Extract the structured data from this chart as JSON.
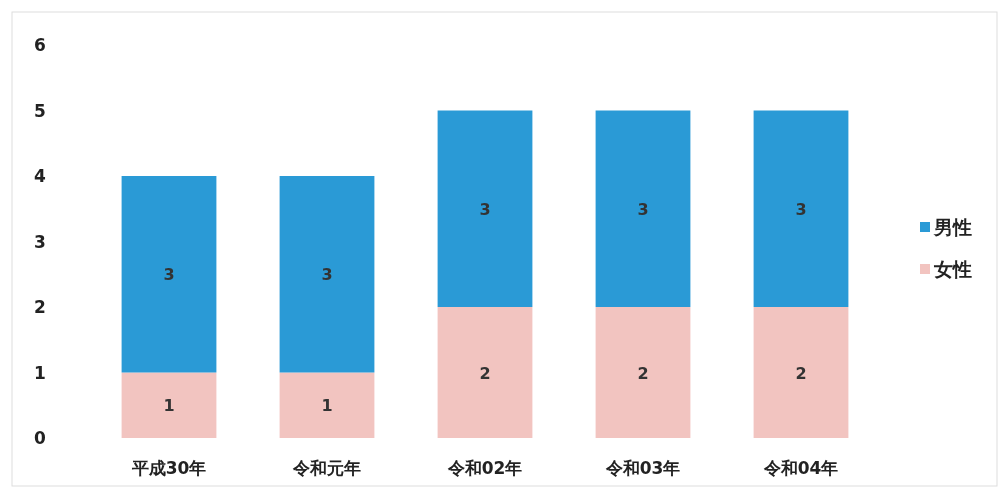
{
  "chart_data": {
    "type": "bar",
    "stacked": true,
    "categories": [
      "平成30年",
      "令和元年",
      "令和02年",
      "令和03年",
      "令和04年"
    ],
    "series": [
      {
        "name": "女性",
        "color": "#f2c4c0",
        "values": [
          1,
          1,
          2,
          2,
          2
        ]
      },
      {
        "name": "男性",
        "color": "#2a9ad6",
        "values": [
          3,
          3,
          3,
          3,
          3
        ]
      }
    ],
    "ylim": [
      0,
      6
    ],
    "yticks": [
      0,
      1,
      2,
      3,
      4,
      5,
      6
    ],
    "data_labels": true,
    "legend": "right",
    "grid": false
  }
}
